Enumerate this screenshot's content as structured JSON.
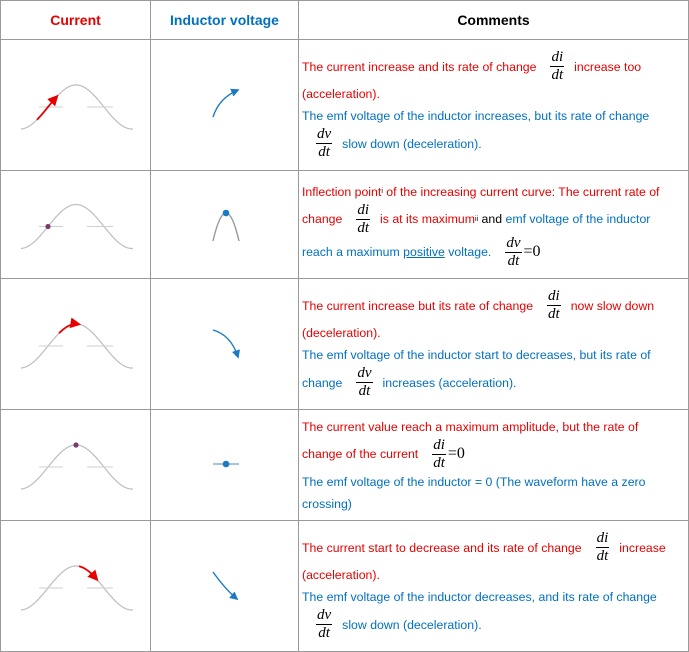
{
  "table": {
    "header": [
      "Current",
      "Inductor voltage",
      "Comments"
    ],
    "header_colors": [
      "#e60000",
      "#0070c0",
      "#000000"
    ],
    "rows": [
      [
        [
          {
            "text": "The current increase and its rate of change",
            "color": "#e60000"
          },
          {
            "num": "di",
            "den": "dt"
          },
          {
            "text": "increase too",
            "color": "#e60000"
          }
        ],
        [
          {
            "text": "(acceleration).",
            "color": "#e60000"
          }
        ],
        [
          {
            "text": "The emf voltage of the inductor increases, but its rate of change",
            "color": "#0070c0"
          }
        ],
        [
          {
            "num": "dv",
            "den": "dt"
          },
          {
            "text": "slow down (deceleration).",
            "color": "#0070c0"
          }
        ]
      ],
      [
        [
          {
            "text": "Inflection point",
            "color": "#e60000"
          },
          {
            "sup": "i"
          },
          {
            "text": " of the increasing current curve: The current rate of",
            "color": "#e60000"
          }
        ],
        [
          {
            "text": "change",
            "color": "#e60000"
          },
          {
            "num": "di",
            "den": "dt"
          },
          {
            "text": "is at its maximum",
            "color": "#e60000"
          },
          {
            "sup": "ii"
          },
          {
            "text": " and ",
            "color": "#000000"
          },
          {
            "text": "emf voltage of the inductor",
            "color": "#0070c0"
          }
        ],
        [
          {
            "text": "reach a maximum ",
            "color": "#0070c0"
          },
          {
            "text": "positive",
            "color": "#0070c0",
            "underline": true
          },
          {
            "text": " voltage.",
            "color": "#0070c0"
          },
          {
            "num": "dv",
            "den": "dt"
          },
          {
            "math": "=0"
          }
        ]
      ],
      [
        [
          {
            "text": "The current increase but its rate of change",
            "color": "#e60000"
          },
          {
            "num": "di",
            "den": "dt"
          },
          {
            "text": "now slow down",
            "color": "#e60000"
          }
        ],
        [
          {
            "text": "(deceleration).",
            "color": "#e60000"
          }
        ],
        [
          {
            "text": "The emf voltage of the inductor start to decreases, but its rate of",
            "color": "#0070c0"
          }
        ],
        [
          {
            "text": "change",
            "color": "#0070c0"
          },
          {
            "num": "dv",
            "den": "dt"
          },
          {
            "text": "increases (acceleration).",
            "color": "#0070c0"
          }
        ]
      ],
      [
        [
          {
            "text": "The current value reach a maximum amplitude, but the rate of",
            "color": "#e60000"
          }
        ],
        [
          {
            "text": "change of the current",
            "color": "#e60000"
          },
          {
            "num": "di",
            "den": "dt"
          },
          {
            "math": "=0"
          }
        ],
        [
          {
            "text": "The emf voltage of the inductor = 0 (The waveform have a zero",
            "color": "#0070c0"
          }
        ],
        [
          {
            "text": "crossing)",
            "color": "#0070c0"
          }
        ]
      ],
      [
        [
          {
            "text": "The current start to decrease and its rate of change",
            "color": "#e60000"
          },
          {
            "num": "di",
            "den": "dt"
          },
          {
            "text": "increase",
            "color": "#e60000"
          }
        ],
        [
          {
            "text": "(acceleration).",
            "color": "#e60000"
          }
        ],
        [
          {
            "text": "The emf voltage of the inductor decreases, and its rate of change",
            "color": "#0070c0"
          }
        ],
        [
          {
            "num": "dv",
            "den": "dt"
          },
          {
            "text": "slow down (deceleration).",
            "color": "#0070c0"
          }
        ]
      ]
    ]
  }
}
